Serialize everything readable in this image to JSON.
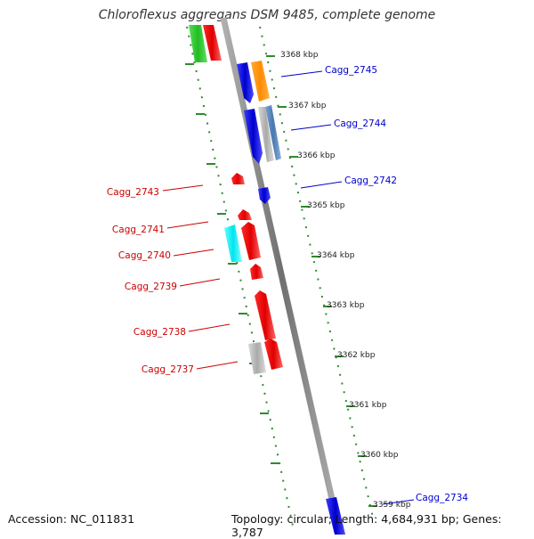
{
  "title": "Chloroflexus aggregans DSM 9485, complete genome",
  "footer": {
    "accession": "Accession: NC_011831",
    "summary": "Topology: circular; Length: 4,684,931 bp; Genes: 3,787"
  },
  "colors": {
    "forward_label": "#0000cc",
    "reverse_label": "#cc0000",
    "backbone": "#888888",
    "ruler": "#2e8b2e",
    "tick_text": "#222222"
  },
  "ruler_ticks": [
    "3368 kbp",
    "3367 kbp",
    "3366 kbp",
    "3365 kbp",
    "3364 kbp",
    "3363 kbp",
    "3362 kbp",
    "3361 kbp",
    "3360 kbp",
    "3359 kbp"
  ],
  "gene_labels": {
    "forward": [
      "Cagg_2745",
      "Cagg_2744",
      "Cagg_2742",
      "Cagg_2734"
    ],
    "reverse": [
      "Cagg_2743",
      "Cagg_2741",
      "Cagg_2740",
      "Cagg_2739",
      "Cagg_2738",
      "Cagg_2737"
    ]
  }
}
